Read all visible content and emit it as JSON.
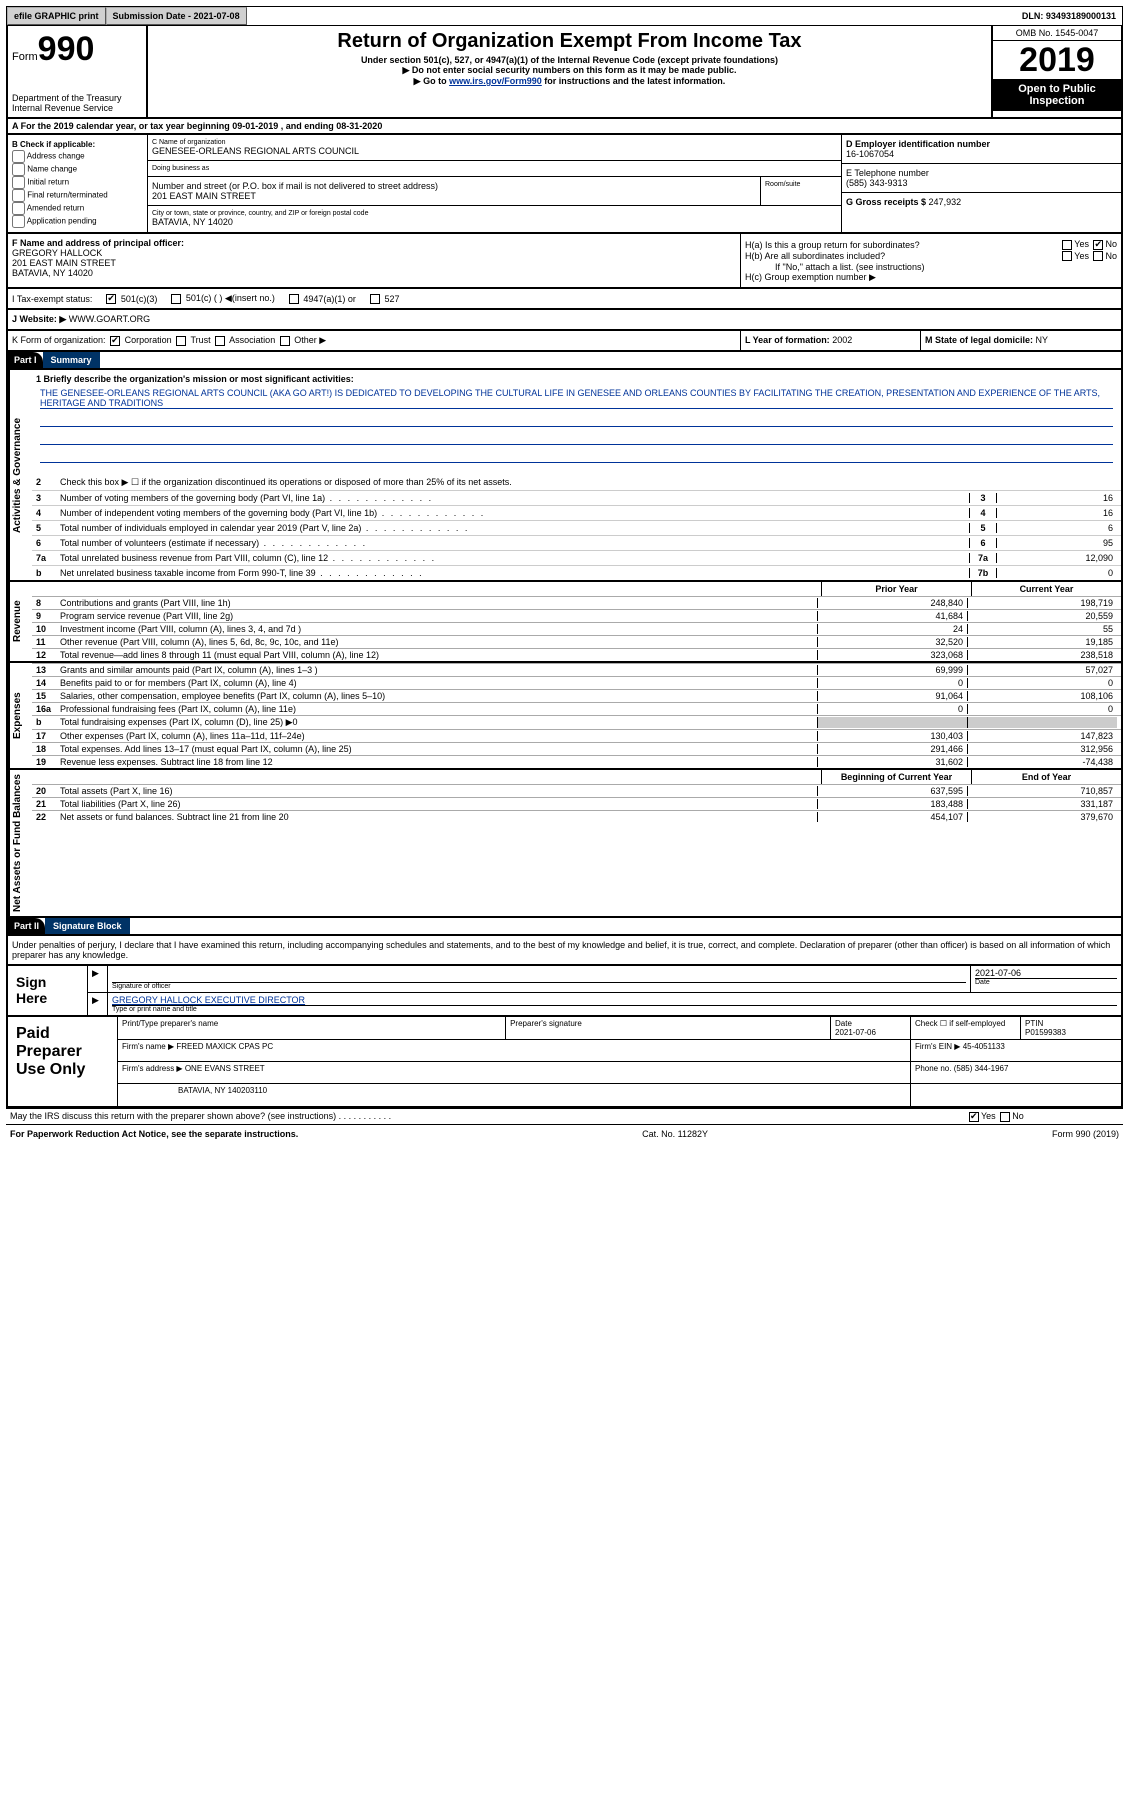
{
  "topbar": {
    "efile": "efile GRAPHIC print",
    "subdate_lbl": "Submission Date - ",
    "subdate": "2021-07-08",
    "dln_lbl": "DLN: ",
    "dln": "93493189000131"
  },
  "header": {
    "form_lbl": "Form",
    "form_num": "990",
    "dept": "Department of the Treasury\nInternal Revenue Service",
    "title": "Return of Organization Exempt From Income Tax",
    "sub1": "Under section 501(c), 527, or 4947(a)(1) of the Internal Revenue Code (except private foundations)",
    "sub2": "Do not enter social security numbers on this form as it may be made public.",
    "sub3_pre": "Go to ",
    "sub3_link": "www.irs.gov/Form990",
    "sub3_post": " for instructions and the latest information.",
    "omb": "OMB No. 1545-0047",
    "year": "2019",
    "inspect": "Open to Public Inspection"
  },
  "row_a": {
    "text": "A For the 2019 calendar year, or tax year beginning 09-01-2019    , and ending 08-31-2020"
  },
  "col_b": {
    "lbl": "B Check if applicable:",
    "items": [
      "Address change",
      "Name change",
      "Initial return",
      "Final return/terminated",
      "Amended return",
      "Application pending"
    ]
  },
  "name_block": {
    "c_lbl": "C Name of organization",
    "c_val": "GENESEE-ORLEANS REGIONAL ARTS COUNCIL",
    "dba_lbl": "Doing business as",
    "dba_val": "",
    "addr_lbl": "Number and street (or P.O. box if mail is not delivered to street address)",
    "addr_val": "201 EAST MAIN STREET",
    "suite_lbl": "Room/suite",
    "city_lbl": "City or town, state or province, country, and ZIP or foreign postal code",
    "city_val": "BATAVIA, NY  14020"
  },
  "col_right": {
    "d_lbl": "D Employer identification number",
    "d_val": "16-1067054",
    "e_lbl": "E Telephone number",
    "e_val": "(585) 343-9313",
    "g_lbl": "G Gross receipts $ ",
    "g_val": "247,932"
  },
  "row_f": {
    "lbl": "F  Name and address of principal officer:",
    "name": "GREGORY HALLOCK",
    "addr": "201 EAST MAIN STREET\nBATAVIA, NY  14020"
  },
  "row_h": {
    "ha": "H(a)  Is this a group return for subordinates?",
    "hb": "H(b)  Are all subordinates included?",
    "hb_note": "If \"No,\" attach a list. (see instructions)",
    "hc": "H(c)  Group exemption number ▶"
  },
  "row_tax": {
    "i": "I  Tax-exempt status:",
    "opts": [
      "501(c)(3)",
      "501(c) (  ) ◀(insert no.)",
      "4947(a)(1) or",
      "527"
    ]
  },
  "row_web": {
    "j": "J  Website: ▶  ",
    "val": "WWW.GOART.ORG"
  },
  "row_klm": {
    "k": "K Form of organization:",
    "k_opts": [
      "Corporation",
      "Trust",
      "Association",
      "Other ▶"
    ],
    "l": "L Year of formation: ",
    "l_val": "2002",
    "m": "M State of legal domicile: ",
    "m_val": "NY"
  },
  "part1": {
    "hdr": "Part I",
    "title": "Summary",
    "line1": "1  Briefly describe the organization's mission or most significant activities:",
    "mission": "THE GENESEE-ORLEANS REGIONAL ARTS COUNCIL (AKA GO ART!) IS DEDICATED TO DEVELOPING THE CULTURAL LIFE IN GENESEE AND ORLEANS COUNTIES BY FACILITATING THE CREATION, PRESENTATION AND EXPERIENCE OF THE ARTS, HERITAGE AND TRADITIONS",
    "line2": "Check this box ▶ ☐  if the organization discontinued its operations or disposed of more than 25% of its net assets.",
    "vtab_act": "Activities & Governance",
    "vtab_rev": "Revenue",
    "vtab_exp": "Expenses",
    "vtab_net": "Net Assets or Fund Balances"
  },
  "gov_lines": [
    {
      "n": "3",
      "d": "Number of voting members of the governing body (Part VI, line 1a)",
      "box": "3",
      "v": "16"
    },
    {
      "n": "4",
      "d": "Number of independent voting members of the governing body (Part VI, line 1b)",
      "box": "4",
      "v": "16"
    },
    {
      "n": "5",
      "d": "Total number of individuals employed in calendar year 2019 (Part V, line 2a)",
      "box": "5",
      "v": "6"
    },
    {
      "n": "6",
      "d": "Total number of volunteers (estimate if necessary)",
      "box": "6",
      "v": "95"
    },
    {
      "n": "7a",
      "d": "Total unrelated business revenue from Part VIII, column (C), line 12",
      "box": "7a",
      "v": "12,090"
    },
    {
      "n": "b",
      "d": "Net unrelated business taxable income from Form 990-T, line 39",
      "box": "7b",
      "v": "0"
    }
  ],
  "yearhdr": {
    "py": "Prior Year",
    "cy": "Current Year"
  },
  "rev_lines": [
    {
      "n": "8",
      "d": "Contributions and grants (Part VIII, line 1h)",
      "py": "248,840",
      "cy": "198,719"
    },
    {
      "n": "9",
      "d": "Program service revenue (Part VIII, line 2g)",
      "py": "41,684",
      "cy": "20,559"
    },
    {
      "n": "10",
      "d": "Investment income (Part VIII, column (A), lines 3, 4, and 7d )",
      "py": "24",
      "cy": "55"
    },
    {
      "n": "11",
      "d": "Other revenue (Part VIII, column (A), lines 5, 6d, 8c, 9c, 10c, and 11e)",
      "py": "32,520",
      "cy": "19,185"
    },
    {
      "n": "12",
      "d": "Total revenue—add lines 8 through 11 (must equal Part VIII, column (A), line 12)",
      "py": "323,068",
      "cy": "238,518"
    }
  ],
  "exp_lines": [
    {
      "n": "13",
      "d": "Grants and similar amounts paid (Part IX, column (A), lines 1–3 )",
      "py": "69,999",
      "cy": "57,027"
    },
    {
      "n": "14",
      "d": "Benefits paid to or for members (Part IX, column (A), line 4)",
      "py": "0",
      "cy": "0"
    },
    {
      "n": "15",
      "d": "Salaries, other compensation, employee benefits (Part IX, column (A), lines 5–10)",
      "py": "91,064",
      "cy": "108,106"
    },
    {
      "n": "16a",
      "d": "Professional fundraising fees (Part IX, column (A), line 11e)",
      "py": "0",
      "cy": "0"
    },
    {
      "n": "b",
      "d": "Total fundraising expenses (Part IX, column (D), line 25) ▶0",
      "py": "",
      "cy": "",
      "shade": true
    },
    {
      "n": "17",
      "d": "Other expenses (Part IX, column (A), lines 11a–11d, 11f–24e)",
      "py": "130,403",
      "cy": "147,823"
    },
    {
      "n": "18",
      "d": "Total expenses. Add lines 13–17 (must equal Part IX, column (A), line 25)",
      "py": "291,466",
      "cy": "312,956"
    },
    {
      "n": "19",
      "d": "Revenue less expenses. Subtract line 18 from line 12",
      "py": "31,602",
      "cy": "-74,438"
    }
  ],
  "net_hdr": {
    "py": "Beginning of Current Year",
    "cy": "End of Year"
  },
  "net_lines": [
    {
      "n": "20",
      "d": "Total assets (Part X, line 16)",
      "py": "637,595",
      "cy": "710,857"
    },
    {
      "n": "21",
      "d": "Total liabilities (Part X, line 26)",
      "py": "183,488",
      "cy": "331,187"
    },
    {
      "n": "22",
      "d": "Net assets or fund balances. Subtract line 21 from line 20",
      "py": "454,107",
      "cy": "379,670"
    }
  ],
  "part2": {
    "hdr": "Part II",
    "title": "Signature Block",
    "declare": "Under penalties of perjury, I declare that I have examined this return, including accompanying schedules and statements, and to the best of my knowledge and belief, it is true, correct, and complete. Declaration of preparer (other than officer) is based on all information of which preparer has any knowledge."
  },
  "sign": {
    "left": "Sign Here",
    "sig_lbl": "Signature of officer",
    "date_lbl": "Date",
    "date": "2021-07-06",
    "name": "GREGORY HALLOCK  EXECUTIVE DIRECTOR",
    "name_lbl": "Type or print name and title"
  },
  "paid": {
    "left": "Paid Preparer Use Only",
    "cols": [
      "Print/Type preparer's name",
      "Preparer's signature",
      "Date",
      "Check ☐ if self-employed",
      "PTIN"
    ],
    "date": "2021-07-06",
    "ptin": "P01599383",
    "firm_lbl": "Firm's name    ▶ ",
    "firm": "FREED MAXICK CPAS PC",
    "ein_lbl": "Firm's EIN ▶ ",
    "ein": "45-4051133",
    "addr_lbl": "Firm's address ▶ ",
    "addr": "ONE EVANS STREET",
    "addr2": "BATAVIA, NY  140203110",
    "phone_lbl": "Phone no. ",
    "phone": "(585) 344-1967"
  },
  "discuss": {
    "q": "May the IRS discuss this return with the preparer shown above? (see instructions)",
    "yes": "Yes",
    "no": "No"
  },
  "footer": {
    "left": "For Paperwork Reduction Act Notice, see the separate instructions.",
    "mid": "Cat. No. 11282Y",
    "right": "Form 990 (2019)"
  },
  "yesno": {
    "yes": "Yes",
    "no": "No"
  }
}
